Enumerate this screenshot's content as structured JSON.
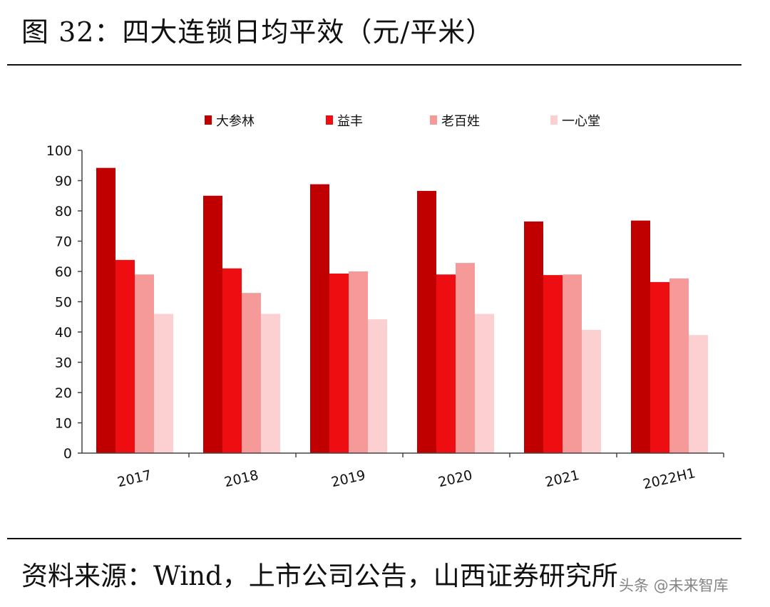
{
  "figure": {
    "title": "图 32：四大连锁日均平效（元/平米）",
    "source": "资料来源：Wind，上市公司公告，山西证券研究所",
    "watermark": "头条 @未来智库"
  },
  "chart_data": {
    "type": "bar",
    "title": "四大连锁日均平效（元/平米）",
    "xlabel": "",
    "ylabel": "",
    "ylim": [
      0,
      100
    ],
    "yticks": [
      0,
      10,
      20,
      30,
      40,
      50,
      60,
      70,
      80,
      90,
      100
    ],
    "grid": false,
    "legend_position": "top",
    "categories": [
      "2017",
      "2018",
      "2019",
      "2020",
      "2021",
      "2022H1"
    ],
    "series": [
      {
        "name": "大参林",
        "color": "#c00000",
        "values": [
          94.2,
          85.0,
          88.8,
          86.6,
          76.5,
          76.8
        ]
      },
      {
        "name": "益丰",
        "color": "#ee0d10",
        "values": [
          63.8,
          61.0,
          59.3,
          59.0,
          58.8,
          56.5
        ]
      },
      {
        "name": "老百姓",
        "color": "#f59a99",
        "values": [
          59.0,
          52.9,
          60.0,
          62.8,
          59.0,
          57.7
        ]
      },
      {
        "name": "一心堂",
        "color": "#fcd0d0",
        "values": [
          46.0,
          46.0,
          44.2,
          46.0,
          40.7,
          39.0
        ]
      }
    ]
  }
}
